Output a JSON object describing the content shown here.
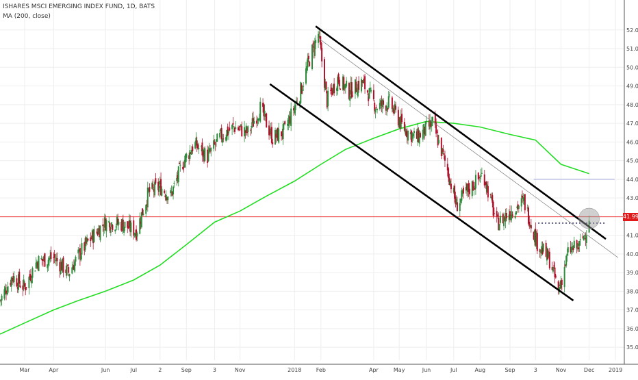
{
  "chart_data": {
    "type": "candlestick",
    "title": "ISHARES MSCI EMERGING INDEX FUND, 1D, BATS",
    "indicator_label": "MA (200, close)",
    "last_price_label": "41.99",
    "last_price": 41.99,
    "ylim": [
      34.6,
      52.8
    ],
    "y_ticks": [
      "52.00",
      "51.00",
      "50.00",
      "49.00",
      "48.00",
      "47.00",
      "46.00",
      "45.00",
      "44.00",
      "43.00",
      "42.00",
      "41.00",
      "40.00",
      "39.00",
      "38.00",
      "37.00",
      "36.00",
      "35.00"
    ],
    "y_tick_values": [
      52,
      51,
      50,
      49,
      48,
      47,
      46,
      45,
      44,
      43,
      42,
      41,
      40,
      39,
      38,
      37,
      36,
      35
    ],
    "x_ticks": [
      {
        "label": "Mar",
        "date": "2017-03-01"
      },
      {
        "label": "Apr",
        "date": "2017-04-03"
      },
      {
        "label": "Jun",
        "date": "2017-06-01"
      },
      {
        "label": "Jul",
        "date": "2017-07-03"
      },
      {
        "label": "2",
        "date": "2017-08-02"
      },
      {
        "label": "Sep",
        "date": "2017-09-01"
      },
      {
        "label": "3",
        "date": "2017-10-03"
      },
      {
        "label": "Nov",
        "date": "2017-11-01"
      },
      {
        "label": "2018",
        "date": "2018-01-02"
      },
      {
        "label": "Feb",
        "date": "2018-02-01"
      },
      {
        "label": "Apr",
        "date": "2018-04-02"
      },
      {
        "label": "May",
        "date": "2018-05-01"
      },
      {
        "label": "Jun",
        "date": "2018-06-01"
      },
      {
        "label": "Jul",
        "date": "2018-07-02"
      },
      {
        "label": "Aug",
        "date": "2018-08-01"
      },
      {
        "label": "Sep",
        "date": "2018-09-04"
      },
      {
        "label": "3",
        "date": "2018-10-03"
      },
      {
        "label": "Nov",
        "date": "2018-11-01"
      },
      {
        "label": "Dec",
        "date": "2018-12-03"
      },
      {
        "label": "2019",
        "date": "2019-01-02"
      }
    ],
    "x_range": [
      "2017-02-01",
      "2019-01-12"
    ],
    "price_path": [
      [
        "2017-02-01",
        37.5
      ],
      [
        "2017-02-15",
        38.8
      ],
      [
        "2017-03-01",
        38.2
      ],
      [
        "2017-03-15",
        39.6
      ],
      [
        "2017-04-03",
        39.8
      ],
      [
        "2017-04-20",
        39.0
      ],
      [
        "2017-05-05",
        40.2
      ],
      [
        "2017-05-20",
        41.1
      ],
      [
        "2017-06-01",
        41.7
      ],
      [
        "2017-06-20",
        41.6
      ],
      [
        "2017-07-06",
        41.2
      ],
      [
        "2017-07-20",
        43.3
      ],
      [
        "2017-08-02",
        43.6
      ],
      [
        "2017-08-14",
        43.1
      ],
      [
        "2017-08-28",
        44.9
      ],
      [
        "2017-09-10",
        45.9
      ],
      [
        "2017-09-25",
        45.2
      ],
      [
        "2017-10-10",
        46.3
      ],
      [
        "2017-10-25",
        46.8
      ],
      [
        "2017-11-10",
        46.5
      ],
      [
        "2017-11-24",
        47.8
      ],
      [
        "2017-12-08",
        46.2
      ],
      [
        "2017-12-22",
        46.6
      ],
      [
        "2018-01-08",
        48.6
      ],
      [
        "2018-01-20",
        50.6
      ],
      [
        "2018-01-29",
        51.8
      ],
      [
        "2018-02-08",
        48.2
      ],
      [
        "2018-02-20",
        49.4
      ],
      [
        "2018-03-05",
        48.7
      ],
      [
        "2018-03-20",
        49.2
      ],
      [
        "2018-04-05",
        47.9
      ],
      [
        "2018-04-20",
        48.1
      ],
      [
        "2018-05-05",
        46.8
      ],
      [
        "2018-05-20",
        46.2
      ],
      [
        "2018-06-08",
        47.0
      ],
      [
        "2018-06-25",
        44.5
      ],
      [
        "2018-07-05",
        42.6
      ],
      [
        "2018-07-20",
        43.5
      ],
      [
        "2018-08-05",
        44.3
      ],
      [
        "2018-08-20",
        41.6
      ],
      [
        "2018-09-05",
        42.3
      ],
      [
        "2018-09-20",
        42.8
      ],
      [
        "2018-10-05",
        40.6
      ],
      [
        "2018-10-20",
        39.6
      ],
      [
        "2018-10-29",
        38.0
      ],
      [
        "2018-11-10",
        40.2
      ],
      [
        "2018-11-22",
        40.4
      ],
      [
        "2018-11-30",
        41.3
      ],
      [
        "2018-12-03",
        41.99
      ]
    ],
    "ma200": [
      [
        "2017-02-01",
        35.7
      ],
      [
        "2017-03-01",
        36.3
      ],
      [
        "2017-04-03",
        37.0
      ],
      [
        "2017-05-01",
        37.5
      ],
      [
        "2017-06-01",
        38.0
      ],
      [
        "2017-07-03",
        38.6
      ],
      [
        "2017-08-02",
        39.4
      ],
      [
        "2017-09-01",
        40.5
      ],
      [
        "2017-10-03",
        41.7
      ],
      [
        "2017-11-01",
        42.3
      ],
      [
        "2017-12-01",
        43.1
      ],
      [
        "2018-01-02",
        43.9
      ],
      [
        "2018-02-01",
        44.8
      ],
      [
        "2018-03-01",
        45.6
      ],
      [
        "2018-04-02",
        46.2
      ],
      [
        "2018-05-01",
        46.7
      ],
      [
        "2018-06-01",
        47.1
      ],
      [
        "2018-07-02",
        47.0
      ],
      [
        "2018-08-01",
        46.8
      ],
      [
        "2018-09-04",
        46.4
      ],
      [
        "2018-10-03",
        46.1
      ],
      [
        "2018-11-01",
        44.8
      ],
      [
        "2018-12-03",
        44.3
      ]
    ],
    "annotations": {
      "channel_upper": [
        [
          "2018-01-26",
          52.2
        ],
        [
          "2018-12-22",
          40.8
        ]
      ],
      "channel_lower": [
        [
          "2017-12-05",
          49.1
        ],
        [
          "2018-11-15",
          37.5
        ]
      ],
      "channel_mid": [
        [
          "2018-01-28",
          51.6
        ],
        [
          "2019-01-05",
          39.8
        ]
      ],
      "resistance_level": {
        "value": 44.0,
        "from": "2018-10-01",
        "to": "2019-01-01"
      },
      "breakout_level": {
        "value": 41.65,
        "from": "2018-10-06",
        "to": "2018-12-22"
      },
      "breakout_circle": {
        "date": "2018-12-03",
        "value": 41.9
      }
    },
    "colors": {
      "up": "#2e8b3a",
      "down": "#b0102a",
      "ma": "#22dd22",
      "channel": "#000000",
      "midline": "#888888",
      "price_line": "#ee3333",
      "resistance": "#9aa0d8",
      "grid": "#eeeeee",
      "price_tag_bg": "#e01a1a"
    }
  }
}
